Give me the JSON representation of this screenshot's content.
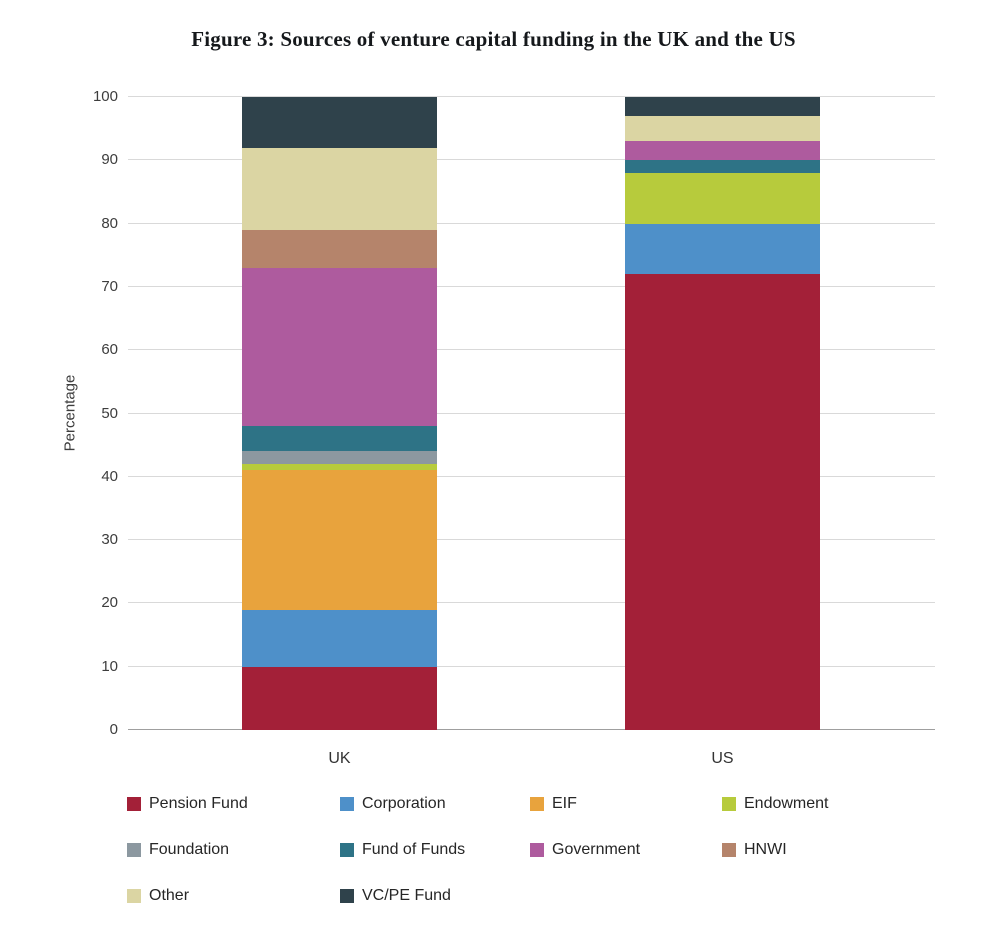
{
  "title": "Figure 3: Sources of venture capital funding in the UK and the US",
  "chart_data": {
    "type": "bar",
    "stacked": true,
    "title": "Figure 3: Sources of venture capital funding in the UK and the US",
    "categories": [
      "UK",
      "US"
    ],
    "series": [
      {
        "name": "Pension Fund",
        "color": "#A32038",
        "values": [
          10,
          72
        ]
      },
      {
        "name": "Corporation",
        "color": "#4E90C9",
        "values": [
          9,
          8
        ]
      },
      {
        "name": "EIF",
        "color": "#E8A33D",
        "values": [
          22,
          0
        ]
      },
      {
        "name": "Endowment",
        "color": "#B7CB3C",
        "values": [
          1,
          8
        ]
      },
      {
        "name": "Foundation",
        "color": "#8C98A0",
        "values": [
          2,
          0
        ]
      },
      {
        "name": "Fund of Funds",
        "color": "#2E7386",
        "values": [
          4,
          2
        ]
      },
      {
        "name": "Government",
        "color": "#AE5B9E",
        "values": [
          25,
          3
        ]
      },
      {
        "name": "HNWI",
        "color": "#B5846B",
        "values": [
          6,
          0
        ]
      },
      {
        "name": "Other",
        "color": "#DBD5A3",
        "values": [
          13,
          4
        ]
      },
      {
        "name": "VC/PE Fund",
        "color": "#2F424B",
        "values": [
          8,
          3
        ]
      }
    ],
    "xlabel": "",
    "ylabel": "Percentage",
    "ylim": [
      0,
      100
    ],
    "yticks": [
      0,
      10,
      20,
      30,
      40,
      50,
      60,
      70,
      80,
      90,
      100
    ],
    "grid": true,
    "legend_position": "bottom"
  }
}
